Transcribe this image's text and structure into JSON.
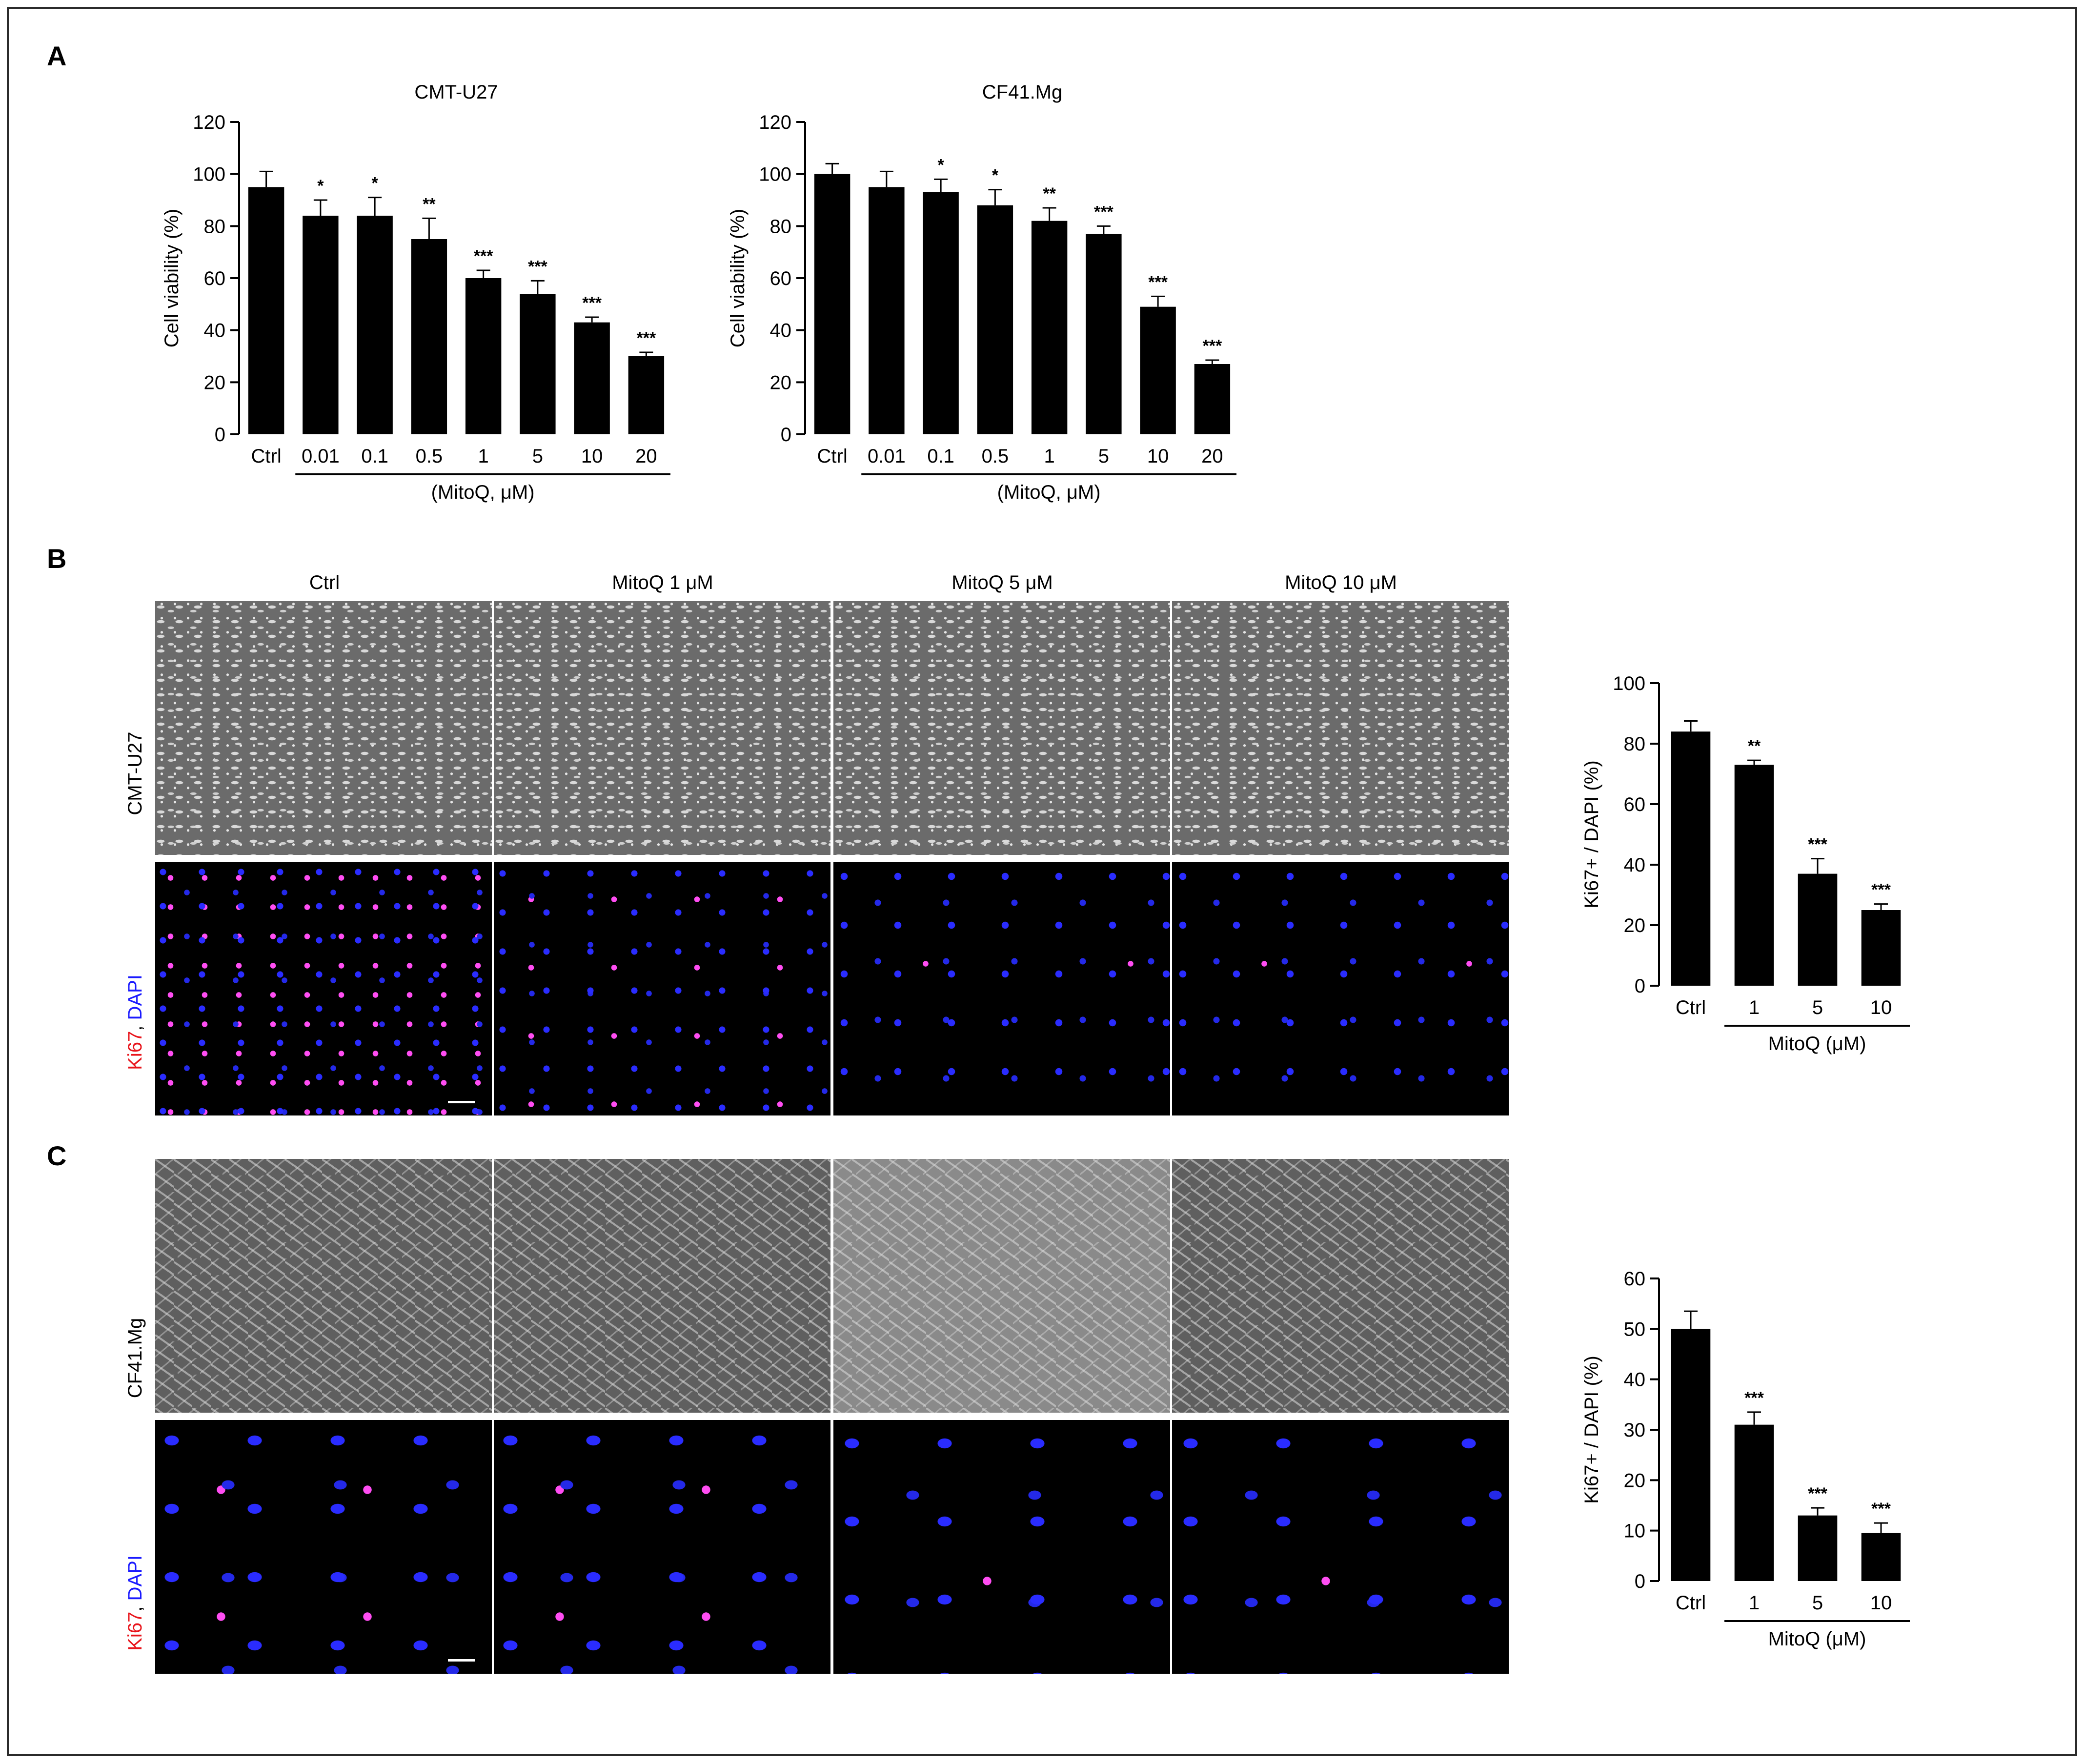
{
  "panels": {
    "A": "A",
    "B": "B",
    "C": "C"
  },
  "micrograph_columns": [
    "Ctrl",
    "MitoQ 1 μM",
    "MitoQ 5 μM",
    "MitoQ 10 μM"
  ],
  "row_labels": {
    "B_brightfield": "CMT-U27",
    "C_brightfield": "CF41.Mg",
    "B_fluo_ki67": "Ki67",
    "B_fluo_dapi": "DAPI",
    "C_fluo_ki67": "Ki67",
    "C_fluo_dapi": "DAPI",
    "separator": ", "
  },
  "colors": {
    "ki67_label": "#e8141b",
    "dapi_label": "#1a1aff",
    "bar": "#000000"
  },
  "chart_data": [
    {
      "type": "bar",
      "title": "CMT-U27",
      "ylabel": "Cell viability (%)",
      "xgroup_label": "(MitoQ, μM)",
      "categories": [
        "Ctrl",
        "0.01",
        "0.1",
        "0.5",
        "1",
        "5",
        "10",
        "20"
      ],
      "values": [
        95,
        84,
        84,
        75,
        60,
        54,
        43,
        30
      ],
      "errors": [
        6,
        6,
        7,
        8,
        3,
        5,
        2,
        1.5
      ],
      "significance": [
        "",
        "*",
        "*",
        "**",
        "***",
        "***",
        "***",
        "***"
      ],
      "ylim": [
        0,
        120
      ],
      "yticks": [
        "0",
        "20",
        "40",
        "60",
        "80",
        "100",
        "120"
      ]
    },
    {
      "type": "bar",
      "title": "CF41.Mg",
      "ylabel": "Cell viability (%)",
      "xgroup_label": "(MitoQ, μM)",
      "categories": [
        "Ctrl",
        "0.01",
        "0.1",
        "0.5",
        "1",
        "5",
        "10",
        "20"
      ],
      "values": [
        100,
        95,
        93,
        88,
        82,
        77,
        49,
        27
      ],
      "errors": [
        4,
        6,
        5,
        6,
        5,
        3,
        4,
        1.5
      ],
      "significance": [
        "",
        "",
        "*",
        "*",
        "**",
        "***",
        "***",
        "***"
      ],
      "ylim": [
        0,
        120
      ],
      "yticks": [
        "0",
        "20",
        "40",
        "60",
        "80",
        "100",
        "120"
      ]
    },
    {
      "type": "bar",
      "title": "",
      "ylabel": "Ki67+ / DAPI (%)",
      "xgroup_label": "MitoQ (μM)",
      "categories": [
        "Ctrl",
        "1",
        "5",
        "10"
      ],
      "values": [
        84,
        73,
        37,
        25
      ],
      "errors": [
        3.5,
        1.5,
        5,
        2
      ],
      "significance": [
        "",
        "**",
        "***",
        "***"
      ],
      "ylim": [
        0,
        100
      ],
      "yticks": [
        "0",
        "20",
        "40",
        "60",
        "80",
        "100"
      ]
    },
    {
      "type": "bar",
      "title": "",
      "ylabel": "Ki67+ / DAPI (%)",
      "xgroup_label": "MitoQ (μM)",
      "categories": [
        "Ctrl",
        "1",
        "5",
        "10"
      ],
      "values": [
        50,
        31,
        13,
        9.5
      ],
      "errors": [
        3.5,
        2.5,
        1.5,
        2
      ],
      "significance": [
        "",
        "***",
        "***",
        "***"
      ],
      "ylim": [
        0,
        60
      ],
      "yticks": [
        "0",
        "10",
        "20",
        "30",
        "40",
        "50",
        "60"
      ]
    }
  ]
}
